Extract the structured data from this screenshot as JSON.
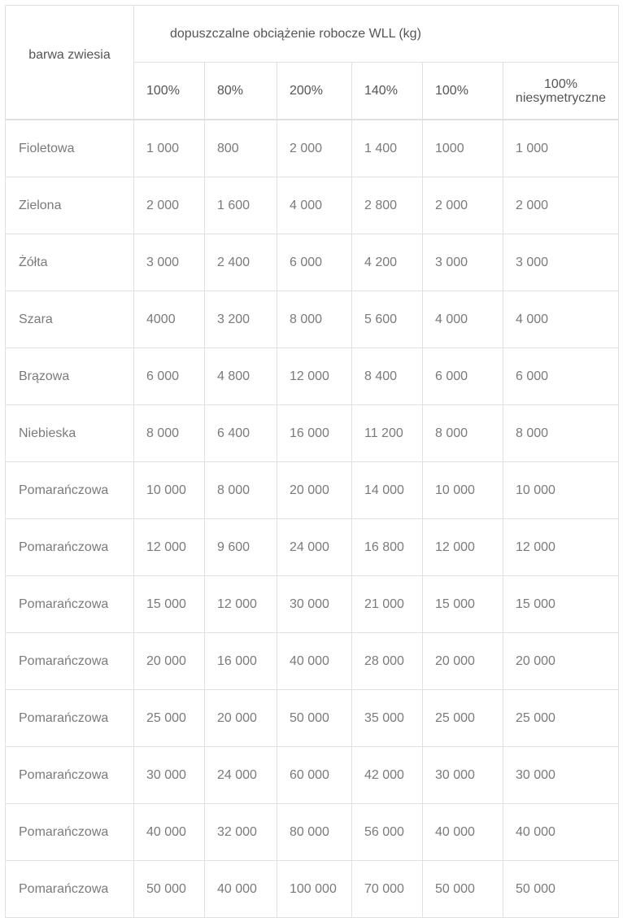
{
  "header": {
    "first_col": "barwa zwiesia",
    "group": "dopuszczalne obciążenie robocze WLL (kg)",
    "columns": [
      "100%",
      "80%",
      "200%",
      "140%",
      "100%",
      "100% niesymetryczne"
    ]
  },
  "rows": [
    [
      "Fioletowa",
      "1 000",
      "800",
      "2 000",
      "1 400",
      "1000",
      "1 000"
    ],
    [
      "Zielona",
      "2 000",
      "1 600",
      "4 000",
      "2 800",
      "2 000",
      "2 000"
    ],
    [
      "Żółta",
      "3 000",
      "2 400",
      "6 000",
      "4 200",
      "3 000",
      "3 000"
    ],
    [
      "Szara",
      "4000",
      "3 200",
      "8 000",
      "5 600",
      "4 000",
      "4 000"
    ],
    [
      "Brązowa",
      "6 000",
      "4 800",
      "12 000",
      "8 400",
      "6 000",
      "6 000"
    ],
    [
      "Niebieska",
      "8 000",
      "6 400",
      "16 000",
      "11 200",
      "8 000",
      "8 000"
    ],
    [
      "Pomarańczowa",
      "10 000",
      "8 000",
      "20 000",
      "14 000",
      "10 000",
      "10 000"
    ],
    [
      "Pomarańczowa",
      "12 000",
      "9 600",
      "24 000",
      "16 800",
      "12 000",
      "12 000"
    ],
    [
      "Pomarańczowa",
      "15 000",
      "12 000",
      "30 000",
      "21 000",
      "15 000",
      "15 000"
    ],
    [
      "Pomarańczowa",
      "20 000",
      "16 000",
      "40 000",
      "28 000",
      "20 000",
      "20 000"
    ],
    [
      "Pomarańczowa",
      "25 000",
      "20 000",
      "50 000",
      "35 000",
      "25 000",
      "25 000"
    ],
    [
      "Pomarańczowa",
      "30 000",
      "24 000",
      "60 000",
      "42 000",
      "30 000",
      "30 000"
    ],
    [
      "Pomarańczowa",
      "40 000",
      "32 000",
      "80 000",
      "56 000",
      "40 000",
      "40 000"
    ],
    [
      "Pomarańczowa",
      "50 000",
      "40 000",
      "100 000",
      "70 000",
      "50 000",
      "50 000"
    ]
  ]
}
